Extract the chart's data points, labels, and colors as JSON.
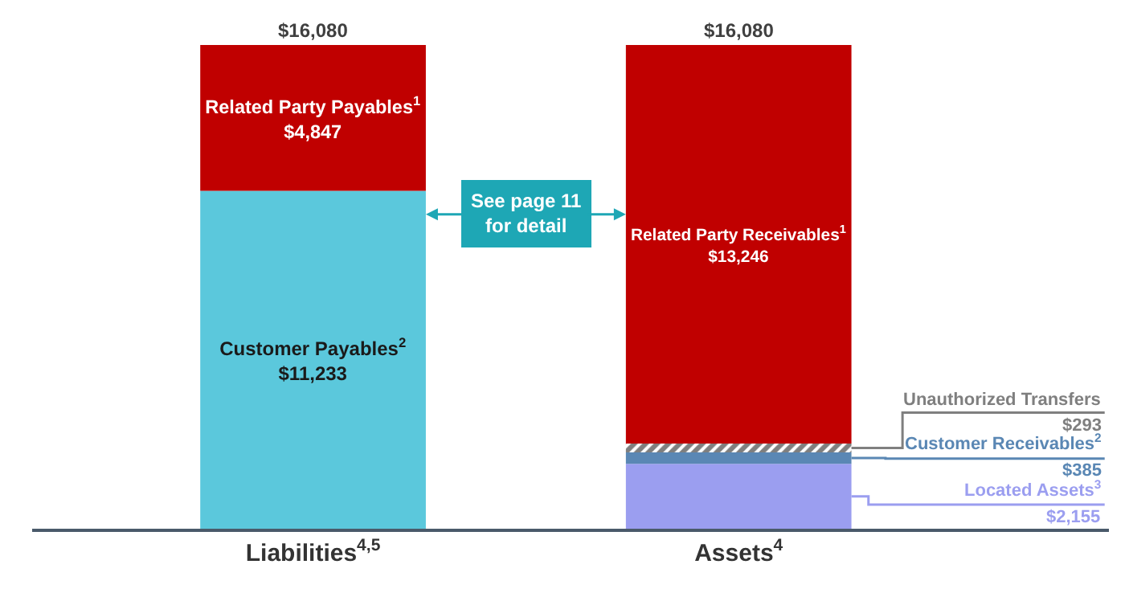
{
  "chart_data": {
    "type": "bar",
    "stacked": true,
    "legend": false,
    "categories": [
      "Liabilities$^{4,5}$",
      "Assets$^{4}$"
    ],
    "series": [
      {
        "name": "Customer Payables$^{2}$",
        "color": "#5bc8dc",
        "values": [
          11233,
          null
        ],
        "value_labels": [
          "$11,233",
          null
        ]
      },
      {
        "name": "Related Party Payables$^{1}$",
        "color": "#c00000",
        "values": [
          4847,
          null
        ],
        "value_labels": [
          "$4,847",
          null
        ]
      },
      {
        "name": "Located Assets$^{3}$",
        "color": "#9b9ef0",
        "values": [
          null,
          2155
        ],
        "value_labels": [
          null,
          "$2,155"
        ]
      },
      {
        "name": "Customer Receivables$^{2}$",
        "color": "#5a87b4",
        "values": [
          null,
          385
        ],
        "value_labels": [
          null,
          "$385"
        ]
      },
      {
        "name": "Unauthorized Transfers",
        "color": "#7f7f7f",
        "values": [
          null,
          293
        ],
        "value_labels": [
          null,
          "$293"
        ]
      },
      {
        "name": "Related Party Receivables$^{1}$",
        "color": "#c00000",
        "values": [
          null,
          13246
        ],
        "value_labels": [
          null,
          "$13,246"
        ]
      }
    ],
    "totals": [
      "$16,080",
      "$16,080"
    ],
    "annotations": [
      "See page 11\nfor detail"
    ]
  }
}
